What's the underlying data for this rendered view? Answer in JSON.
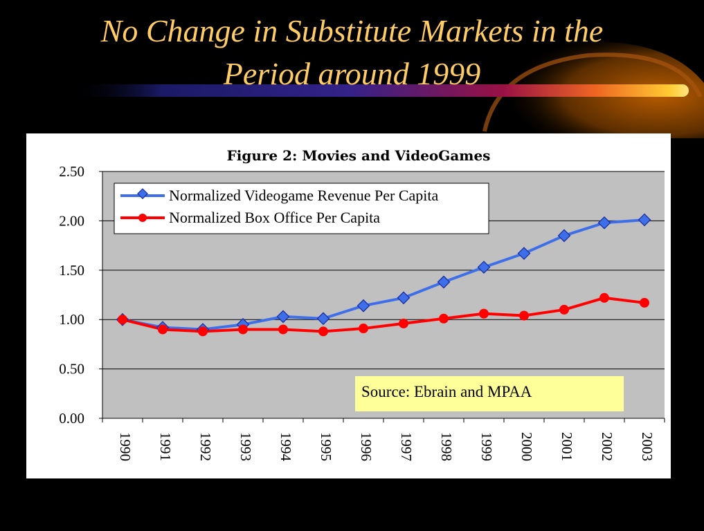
{
  "slide": {
    "title_line1": "No Change in Substitute Markets in the",
    "title_line2": "Period around 1999"
  },
  "colors": {
    "background": "#000000",
    "title": "#ffcc66",
    "plot_area": "#c0c0c0",
    "videogame_series": "#3f6fe8",
    "box_office_series": "#ff0000",
    "source_box": "#ffff99"
  },
  "chart_data": {
    "type": "line",
    "title": "Figure 2: Movies and VideoGames",
    "xlabel": "",
    "ylabel": "",
    "categories": [
      "1990",
      "1991",
      "1992",
      "1993",
      "1994",
      "1995",
      "1996",
      "1997",
      "1998",
      "1999",
      "2000",
      "2001",
      "2002",
      "2003"
    ],
    "ylim": [
      0,
      2.5
    ],
    "yticks": [
      "0.00",
      "0.50",
      "1.00",
      "1.50",
      "2.00",
      "2.50"
    ],
    "grid": true,
    "legend_position": "top-left",
    "series": [
      {
        "name": "Normalized Videogame Revenue Per Capita",
        "marker": "diamond",
        "values": [
          1.0,
          0.92,
          0.9,
          0.95,
          1.03,
          1.01,
          1.14,
          1.22,
          1.38,
          1.53,
          1.67,
          1.85,
          1.98,
          2.01
        ]
      },
      {
        "name": "Normalized Box Office Per Capita",
        "marker": "circle",
        "values": [
          1.0,
          0.9,
          0.88,
          0.9,
          0.9,
          0.88,
          0.91,
          0.96,
          1.01,
          1.06,
          1.04,
          1.1,
          1.22,
          1.17
        ]
      }
    ],
    "annotation": "Source: Ebrain and MPAA"
  }
}
